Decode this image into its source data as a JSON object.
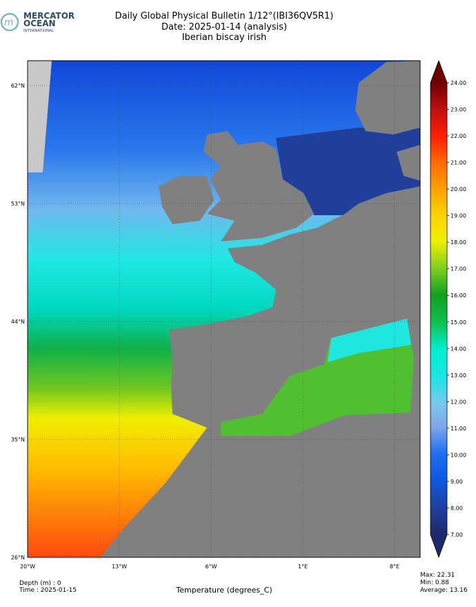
{
  "logo": {
    "line1": "MERCATOR",
    "line2": "OCEAN",
    "line3": "INTERNATIONAL"
  },
  "header": {
    "title": "Daily Global Physical Bulletin 1/12°(IBI36QV5R1)",
    "date": "Date: 2025-01-14 (analysis)",
    "region": "Iberian biscay irish"
  },
  "map": {
    "lat_ticks": [
      {
        "value": 26,
        "label": "26°N"
      },
      {
        "value": 35,
        "label": "35°N"
      },
      {
        "value": 44,
        "label": "44°N"
      },
      {
        "value": 53,
        "label": "53°N"
      },
      {
        "value": 62,
        "label": "62°N"
      }
    ],
    "lon_ticks": [
      {
        "value": -20,
        "label": "20°W"
      },
      {
        "value": -13,
        "label": "13°W"
      },
      {
        "value": -6,
        "label": "6°W"
      },
      {
        "value": 1,
        "label": "1°E"
      },
      {
        "value": 8,
        "label": "8°E"
      }
    ],
    "grid": true
  },
  "colorbar": {
    "ticks": [
      {
        "value": 7,
        "label": "7.00"
      },
      {
        "value": 8,
        "label": "8.00"
      },
      {
        "value": 9,
        "label": "9.00"
      },
      {
        "value": 10,
        "label": "10.00"
      },
      {
        "value": 11,
        "label": "11.00"
      },
      {
        "value": 12,
        "label": "12.00"
      },
      {
        "value": 13,
        "label": "13.00"
      },
      {
        "value": 14,
        "label": "14.00"
      },
      {
        "value": 15,
        "label": "15.00"
      },
      {
        "value": 16,
        "label": "16.00"
      },
      {
        "value": 17,
        "label": "17.00"
      },
      {
        "value": 18,
        "label": "18.00"
      },
      {
        "value": 19,
        "label": "19.00"
      },
      {
        "value": 20,
        "label": "20.00"
      },
      {
        "value": 21,
        "label": "21.00"
      },
      {
        "value": 22,
        "label": "22.00"
      },
      {
        "value": 23,
        "label": "23.00"
      },
      {
        "value": 24,
        "label": "24.00"
      }
    ]
  },
  "footer": {
    "depth": "Depth (m) : 0",
    "time": "Time : 2025-01-15",
    "variable": "Temperature (degrees_C)",
    "max": "Max: 22.31",
    "min": "Min:  0.88",
    "average": "Average: 13.16"
  }
}
